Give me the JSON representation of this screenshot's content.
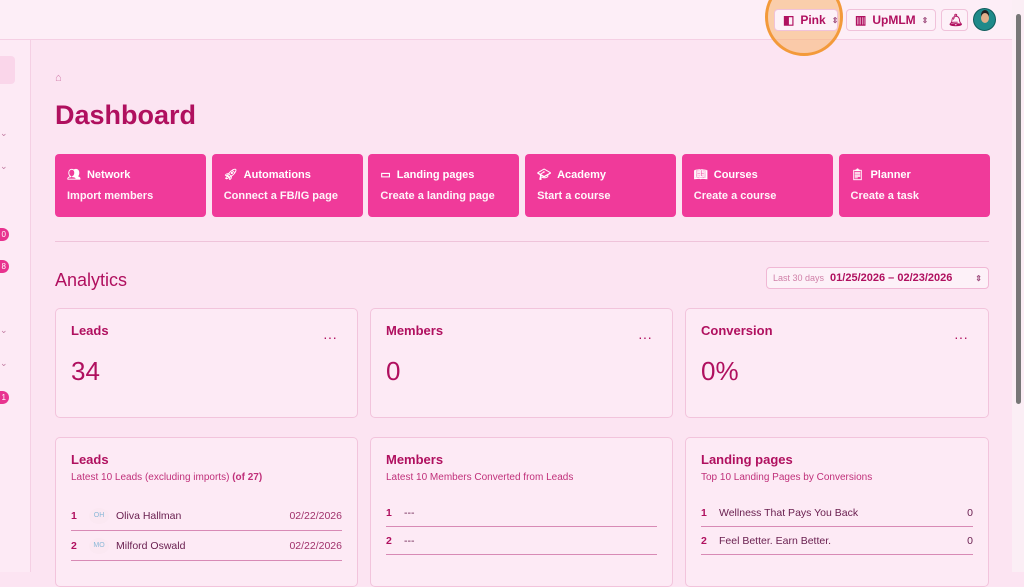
{
  "topbar": {
    "theme_label": "Pink",
    "org_label": "UpMLM"
  },
  "sidebar": {
    "badges": [
      "0",
      "8",
      "1"
    ]
  },
  "page_title": "Dashboard",
  "quick_actions": [
    {
      "title": "Network",
      "subtitle": "Import members",
      "icon": "users-icon"
    },
    {
      "title": "Automations",
      "subtitle": "Connect a FB/IG page",
      "icon": "rocket-icon"
    },
    {
      "title": "Landing pages",
      "subtitle": "Create a landing page",
      "icon": "monitor-icon"
    },
    {
      "title": "Academy",
      "subtitle": "Start a course",
      "icon": "graduation-cap-icon"
    },
    {
      "title": "Courses",
      "subtitle": "Create a course",
      "icon": "book-icon"
    },
    {
      "title": "Planner",
      "subtitle": "Create a task",
      "icon": "clipboard-icon"
    }
  ],
  "analytics": {
    "title": "Analytics",
    "range_label": "Last 30 days",
    "range": "01/25/2026 – 02/23/2026",
    "stats": [
      {
        "label": "Leads",
        "value": "34"
      },
      {
        "label": "Members",
        "value": "0"
      },
      {
        "label": "Conversion",
        "value": "0%"
      }
    ]
  },
  "lists": {
    "leads": {
      "title": "Leads",
      "subtitle": "Latest 10 Leads (excluding imports)",
      "count": "(of 27)",
      "rows": [
        {
          "n": "1",
          "ini": "OH",
          "name": "Oliva Hallman",
          "date": "02/22/2026"
        },
        {
          "n": "2",
          "ini": "MO",
          "name": "Milford Oswald",
          "date": "02/22/2026"
        }
      ]
    },
    "members": {
      "title": "Members",
      "subtitle": "Latest 10 Members Converted from Leads",
      "rows": [
        {
          "n": "1",
          "name": "---"
        },
        {
          "n": "2",
          "name": "---"
        }
      ]
    },
    "landing": {
      "title": "Landing pages",
      "subtitle": "Top 10 Landing Pages by Conversions",
      "rows": [
        {
          "n": "1",
          "name": "Wellness That Pays You Back",
          "val": "0"
        },
        {
          "n": "2",
          "name": "Feel Better. Earn Better.",
          "val": "0"
        }
      ]
    }
  },
  "colors": {
    "accent": "#f03a9a",
    "text": "#b0105f",
    "bg": "#fce4f2"
  }
}
